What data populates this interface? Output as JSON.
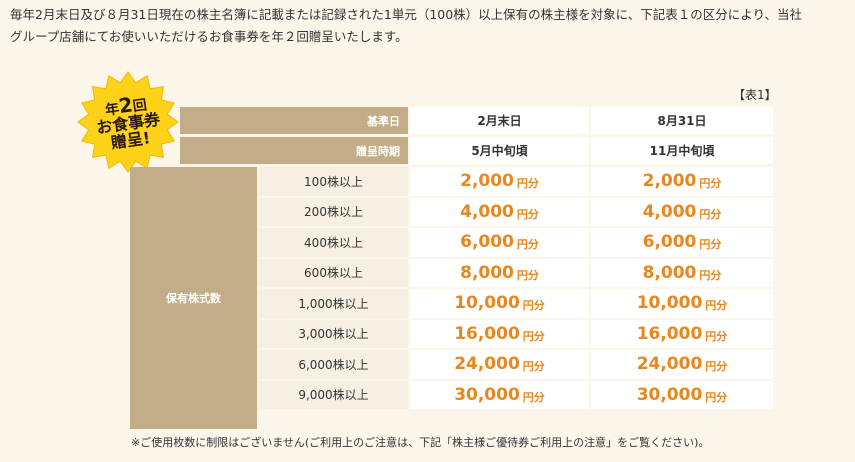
{
  "intro": {
    "line1": "毎年2月末日及び８月31日現在の株主名簿に記載または記録された1単元（100株）以上保有の株主様を対象に、下記表１の区分により、当社",
    "line2": "グループ店舗にてお使いいただけるお食事券を年２回贈呈いたします。"
  },
  "badge": {
    "line1_prefix": "年",
    "line1_number": "2",
    "line1_suffix": "回",
    "line2": "お食事券",
    "line3": "贈呈!",
    "color": "#ffd21a"
  },
  "table": {
    "note": "【表1】",
    "header": {
      "base_date_label": "基準日",
      "base_dates": [
        "2月末日",
        "8月31日"
      ],
      "timing_label": "贈呈時期",
      "timings": [
        "5月中旬頃",
        "11月中旬頃"
      ]
    },
    "side_label": "保有株式数",
    "unit": "円分",
    "rows": [
      {
        "shares": "100株以上",
        "feb": "2,000",
        "aug": "2,000"
      },
      {
        "shares": "200株以上",
        "feb": "4,000",
        "aug": "4,000"
      },
      {
        "shares": "400株以上",
        "feb": "6,000",
        "aug": "6,000"
      },
      {
        "shares": "600株以上",
        "feb": "8,000",
        "aug": "8,000"
      },
      {
        "shares": "1,000株以上",
        "feb": "10,000",
        "aug": "10,000"
      },
      {
        "shares": "3,000株以上",
        "feb": "16,000",
        "aug": "16,000"
      },
      {
        "shares": "6,000株以上",
        "feb": "24,000",
        "aug": "24,000"
      },
      {
        "shares": "9,000株以上",
        "feb": "30,000",
        "aug": "30,000"
      }
    ]
  },
  "footnote": "※ご使用枚数に制限はございません(ご利用上のご注意は、下記「株主様ご優待券ご利用上の注意」をご覧ください)。",
  "colors": {
    "background": "#fbf5ea",
    "header_tan": "#c2ad88",
    "shares_cell": "#f7f0e2",
    "amount_orange": "#e8871e"
  }
}
